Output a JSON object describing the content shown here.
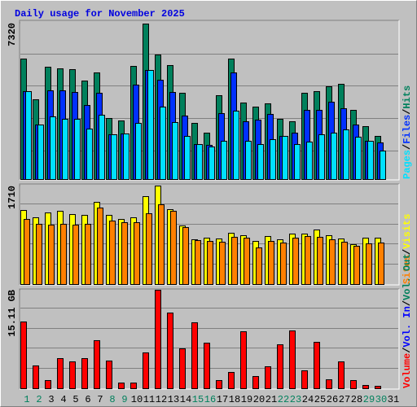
{
  "chart_data": [
    {
      "type": "bar",
      "title": "Daily usage for November 2025",
      "ylim": [
        0,
        7320
      ],
      "yticks": [
        7320
      ],
      "legend_separator": "/",
      "series": [
        {
          "name": "Hits",
          "color": "#00805c",
          "values": [
            5643,
            3736,
            5261,
            5185,
            5147,
            4613,
            4994,
            2859,
            2745,
            5299,
            7282,
            5833,
            5338,
            4041,
            2631,
            2173,
            3927,
            5643,
            3584,
            3393,
            3546,
            2821,
            2707,
            4041,
            4118,
            4346,
            4461,
            3241,
            2478,
            2021,
            null
          ]
        },
        {
          "name": "Files",
          "color": "#0030ff",
          "values": [
            4118,
            2554,
            4156,
            4156,
            4079,
            3469,
            4041,
            2097,
            2135,
            4423,
            5109,
            4651,
            4079,
            2974,
            1639,
            1601,
            3088,
            4994,
            2707,
            2783,
            3050,
            2021,
            2173,
            3241,
            3241,
            3622,
            3317,
            2554,
            1792,
            1716,
            null
          ]
        },
        {
          "name": "Pages",
          "color": "#00e0ff",
          "values": [
            4118,
            2554,
            2936,
            2821,
            2821,
            2364,
            3012,
            2097,
            2135,
            2631,
            5109,
            3393,
            2669,
            2021,
            1639,
            1525,
            1792,
            3203,
            1792,
            1639,
            1868,
            2021,
            1639,
            1754,
            2097,
            2173,
            2326,
            1983,
            1792,
            1334,
            null
          ]
        }
      ]
    },
    {
      "type": "bar",
      "ylim": [
        0,
        1710
      ],
      "yticks": [
        1710
      ],
      "legend_separator": "/",
      "series": [
        {
          "name": "Visits",
          "color": "#ffff00",
          "values": [
            1286,
            1159,
            1243,
            1272,
            1215,
            1201,
            1427,
            1201,
            1130,
            1159,
            1526,
            1710,
            1300,
            1017,
            777,
            805,
            791,
            890,
            848,
            749,
            834,
            777,
            876,
            876,
            947,
            848,
            791,
            692,
            805,
            805,
            null
          ]
        },
        {
          "name": "Sites",
          "color": "#ff8000",
          "values": [
            1130,
            1046,
            1031,
            1046,
            1031,
            1046,
            1328,
            1102,
            1074,
            1074,
            1229,
            1385,
            1272,
            989,
            763,
            749,
            735,
            820,
            805,
            636,
            749,
            721,
            805,
            834,
            820,
            777,
            735,
            664,
            707,
            721,
            null
          ]
        }
      ]
    },
    {
      "type": "bar",
      "ylim": [
        0,
        15.11
      ],
      "yticks": [
        {
          "value": 15.11,
          "label": "15.11 GB"
        }
      ],
      "legend_separator": "/",
      "categories": [
        "1",
        "2",
        "3",
        "4",
        "5",
        "6",
        "7",
        "8",
        "9",
        "10",
        "11",
        "12",
        "13",
        "14",
        "15",
        "16",
        "17",
        "18",
        "19",
        "20",
        "21",
        "22",
        "23",
        "24",
        "25",
        "26",
        "27",
        "28",
        "29",
        "30",
        "31"
      ],
      "category_colors": [
        "#00805c",
        "#00805c",
        "#000000",
        "#000000",
        "#000000",
        "#000000",
        "#000000",
        "#00805c",
        "#00805c",
        "#000000",
        "#000000",
        "#000000",
        "#000000",
        "#000000",
        "#00805c",
        "#00805c",
        "#000000",
        "#000000",
        "#000000",
        "#000000",
        "#000000",
        "#00805c",
        "#00805c",
        "#000000",
        "#000000",
        "#000000",
        "#000000",
        "#000000",
        "#00805c",
        "#00805c",
        "#000000"
      ],
      "series": [
        {
          "name": "Vol. Out",
          "color": "#00805c",
          "values": [
            null,
            null,
            null,
            null,
            null,
            null,
            null,
            null,
            null,
            null,
            null,
            null,
            null,
            null,
            null,
            null,
            null,
            null,
            null,
            null,
            null,
            null,
            null,
            null,
            null,
            null,
            null,
            null,
            null,
            null,
            null
          ]
        },
        {
          "name": "Vol. In",
          "color": "#0000ff",
          "values": [
            null,
            null,
            null,
            null,
            null,
            null,
            null,
            null,
            null,
            null,
            null,
            null,
            null,
            null,
            null,
            null,
            null,
            null,
            null,
            null,
            null,
            null,
            null,
            null,
            null,
            null,
            null,
            null,
            null,
            null,
            null
          ]
        },
        {
          "name": "Volume",
          "color": "#ff0000",
          "values": [
            10.24,
            3.5,
            1.25,
            4.62,
            4.12,
            4.62,
            7.37,
            4.25,
            0.87,
            0.87,
            5.5,
            15.11,
            11.61,
            6.12,
            10.12,
            6.99,
            1.25,
            2.5,
            8.74,
            1.87,
            3.37,
            6.74,
            8.87,
            2.75,
            7.12,
            1.37,
            4.12,
            1.25,
            0.5,
            0.37,
            null
          ]
        }
      ]
    }
  ]
}
